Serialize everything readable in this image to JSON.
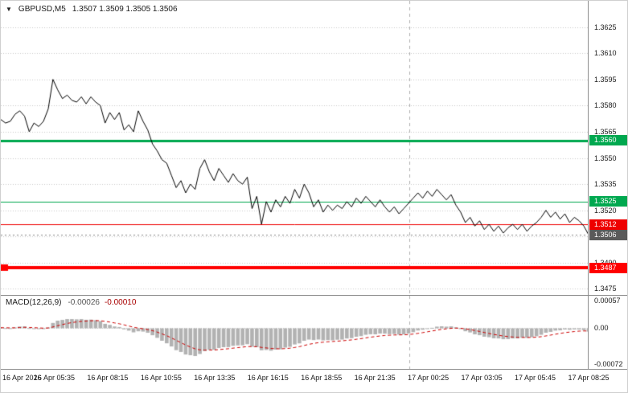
{
  "header": {
    "dropdown_icon": "▼",
    "title": "GBPUSD,M5",
    "ohlc": "1.3507 1.3509 1.3505 1.3506"
  },
  "chart_data": [
    {
      "type": "line",
      "name": "price",
      "title": "GBPUSD,M5",
      "line_color": "#000000",
      "grid_color": "#c9c9c9",
      "separator_color": "#b0b0b0",
      "ylim": [
        1.3472,
        1.364
      ],
      "y_ticks": [
        "1.3625",
        "1.3610",
        "1.3595",
        "1.3580",
        "1.3565",
        "1.3550",
        "1.3535",
        "1.3520",
        "1.3505",
        "1.3490",
        "1.3475"
      ],
      "x_labels": [
        "16 Apr 2026",
        "16 Apr 05:35",
        "16 Apr 08:15",
        "16 Apr 10:55",
        "16 Apr 13:35",
        "16 Apr 16:15",
        "16 Apr 18:55",
        "16 Apr 21:35",
        "17 Apr 00:25",
        "17 Apr 03:05",
        "17 Apr 05:45",
        "17 Apr 08:25"
      ],
      "separator_x_frac": 0.695,
      "values": [
        1.3572,
        1.357,
        1.3571,
        1.3575,
        1.3577,
        1.3574,
        1.3565,
        1.357,
        1.3568,
        1.3571,
        1.3578,
        1.3595,
        1.3589,
        1.3584,
        1.3586,
        1.3583,
        1.3582,
        1.3585,
        1.3581,
        1.3585,
        1.3582,
        1.358,
        1.357,
        1.3576,
        1.3572,
        1.3576,
        1.3566,
        1.3569,
        1.3565,
        1.3577,
        1.3571,
        1.3566,
        1.3558,
        1.3554,
        1.3549,
        1.3547,
        1.354,
        1.3533,
        1.3537,
        1.353,
        1.3535,
        1.3532,
        1.3544,
        1.3549,
        1.3542,
        1.3537,
        1.3544,
        1.354,
        1.3536,
        1.3541,
        1.3537,
        1.3535,
        1.3539,
        1.3521,
        1.3528,
        1.3512,
        1.3525,
        1.3519,
        1.3526,
        1.3522,
        1.3528,
        1.3524,
        1.3532,
        1.3527,
        1.3535,
        1.353,
        1.3522,
        1.3526,
        1.3519,
        1.3523,
        1.352,
        1.3523,
        1.3521,
        1.3525,
        1.3522,
        1.3527,
        1.3524,
        1.3528,
        1.3525,
        1.3522,
        1.3526,
        1.3522,
        1.3519,
        1.3522,
        1.3518,
        1.3521,
        1.3524,
        1.3527,
        1.353,
        1.3527,
        1.3531,
        1.3528,
        1.3532,
        1.3529,
        1.3526,
        1.3529,
        1.3523,
        1.3519,
        1.3513,
        1.3516,
        1.3511,
        1.3514,
        1.3509,
        1.3512,
        1.3508,
        1.3511,
        1.3507,
        1.351,
        1.3512,
        1.3509,
        1.3512,
        1.3508,
        1.3511,
        1.3513,
        1.3516,
        1.352,
        1.3516,
        1.3519,
        1.3515,
        1.3518,
        1.3513,
        1.3516,
        1.3514,
        1.3511,
        1.3506
      ],
      "levels": [
        {
          "value": 1.356,
          "label": "1.3560",
          "color": "#00a84f",
          "thickness": 3,
          "left_marker": false
        },
        {
          "value": 1.3525,
          "label": "1.3525",
          "color": "#00a84f",
          "thickness": 1,
          "left_marker": false
        },
        {
          "value": 1.3512,
          "label": "1.3512",
          "color": "#ee0000",
          "thickness": 1,
          "left_marker": false
        },
        {
          "value": 1.3487,
          "label": "1.3487",
          "color": "#ff0000",
          "thickness": 4,
          "left_marker": true
        }
      ],
      "current_price": {
        "value": 1.3506,
        "label": "1.3506",
        "box_color": "#5a5a5a",
        "line_color": "#8a8a8a"
      }
    },
    {
      "type": "macd",
      "label": "MACD(12,26,9)",
      "main_value": "-0.00026",
      "signal_value": "-0.00010",
      "params": {
        "fast": 12,
        "slow": 26,
        "signal": 9
      },
      "histogram_color": "#b2b2b2",
      "signal_color": "#cc0000",
      "ylim": [
        -0.0008,
        0.00062
      ],
      "y_ticks": [
        {
          "label": "0.00057",
          "value": 0.00057
        },
        {
          "label": "0.00",
          "value": 0
        },
        {
          "label": "-0.00072",
          "value": -0.00072
        }
      ]
    }
  ]
}
